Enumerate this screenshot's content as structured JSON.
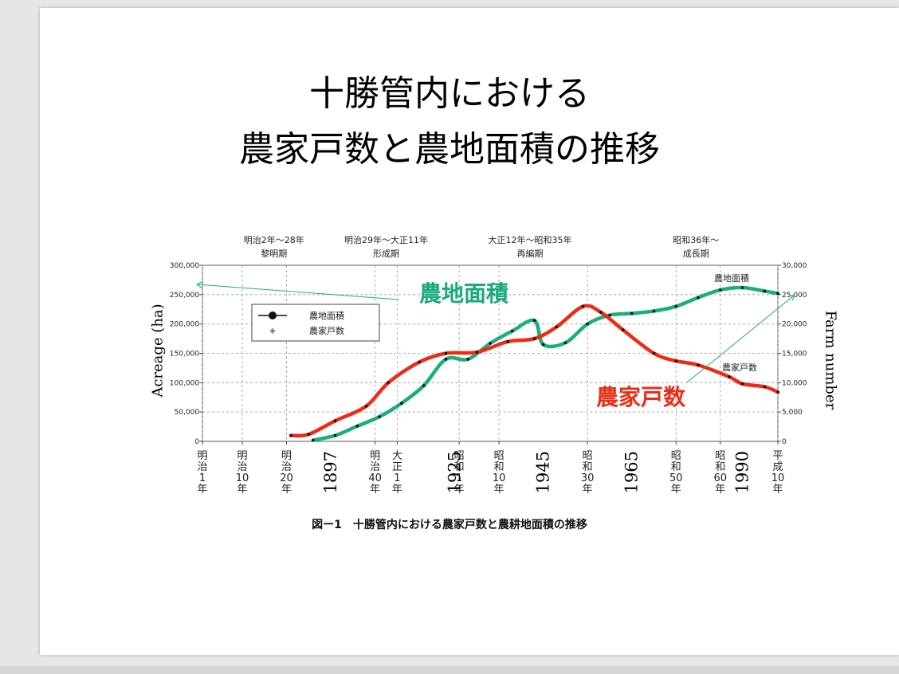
{
  "slide": {
    "title_line1": "十勝管内における",
    "title_line2": "農家戸数と農地面積の推移",
    "caption": "図ー1　十勝管内における農家戸数と農耕地面積の推移",
    "ylabel_left": "Acreage (ha)",
    "ylabel_right": "Farm number"
  },
  "chart_data": {
    "type": "line",
    "periods": [
      {
        "range": "明治2年～28年",
        "name": "黎明期"
      },
      {
        "range": "明治29年～大正11年",
        "name": "形成期"
      },
      {
        "range": "大正12年～昭和35年",
        "name": "再編期"
      },
      {
        "range": "昭和36年～",
        "name": "成長期"
      }
    ],
    "x_ticks": [
      {
        "label": "明治1年",
        "year": 1868
      },
      {
        "label": "明治10年",
        "year": 1877
      },
      {
        "label": "明治20年",
        "year": 1887
      },
      {
        "label": "明治40年",
        "year": 1907
      },
      {
        "label": "大正1年",
        "year": 1912
      },
      {
        "label": "昭和1年",
        "year": 1926
      },
      {
        "label": "昭和10年",
        "year": 1935
      },
      {
        "label": "昭和30年",
        "year": 1955
      },
      {
        "label": "昭和50年",
        "year": 1975
      },
      {
        "label": "昭和60年",
        "year": 1985
      },
      {
        "label": "平成10年",
        "year": 1998
      }
    ],
    "year_annotations": [
      {
        "label": "1897",
        "year": 1897
      },
      {
        "label": "1925",
        "year": 1925
      },
      {
        "label": "1945",
        "year": 1945
      },
      {
        "label": "1965",
        "year": 1965
      },
      {
        "label": "1990",
        "year": 1990
      }
    ],
    "xlim": [
      1868,
      1998
    ],
    "y_left": {
      "ticks": [
        "0",
        "50,000",
        "100,000",
        "150,000",
        "200,000",
        "250,000",
        "300,000"
      ],
      "ylim": [
        0,
        300000
      ]
    },
    "y_right": {
      "ticks": [
        "0",
        "5,000",
        "10,000",
        "15,000",
        "20,000",
        "25,000",
        "30,000"
      ],
      "ylim": [
        0,
        30000
      ]
    },
    "legend": {
      "placement": "top-left",
      "items": [
        "農地面積",
        "農家戸数"
      ]
    },
    "series": [
      {
        "name": "農地面積",
        "axis": "left",
        "color": "#1aae7e",
        "points": [
          {
            "x": 1893,
            "y": 2000
          },
          {
            "x": 1898,
            "y": 10000
          },
          {
            "x": 1903,
            "y": 26000
          },
          {
            "x": 1908,
            "y": 42000
          },
          {
            "x": 1913,
            "y": 65000
          },
          {
            "x": 1918,
            "y": 95000
          },
          {
            "x": 1923,
            "y": 140000
          },
          {
            "x": 1928,
            "y": 140000
          },
          {
            "x": 1933,
            "y": 167000
          },
          {
            "x": 1938,
            "y": 188000
          },
          {
            "x": 1943,
            "y": 206000
          },
          {
            "x": 1945,
            "y": 165000
          },
          {
            "x": 1950,
            "y": 168000
          },
          {
            "x": 1955,
            "y": 200000
          },
          {
            "x": 1960,
            "y": 215000
          },
          {
            "x": 1965,
            "y": 218000
          },
          {
            "x": 1970,
            "y": 222000
          },
          {
            "x": 1975,
            "y": 230000
          },
          {
            "x": 1980,
            "y": 245000
          },
          {
            "x": 1985,
            "y": 258000
          },
          {
            "x": 1990,
            "y": 262000
          },
          {
            "x": 1995,
            "y": 256000
          },
          {
            "x": 1998,
            "y": 252000
          }
        ]
      },
      {
        "name": "農家戸数",
        "axis": "right",
        "color": "#ee2b14",
        "points": [
          {
            "x": 1888,
            "y": 1000
          },
          {
            "x": 1892,
            "y": 1200
          },
          {
            "x": 1898,
            "y": 3500
          },
          {
            "x": 1905,
            "y": 6000
          },
          {
            "x": 1910,
            "y": 10000
          },
          {
            "x": 1917,
            "y": 13500
          },
          {
            "x": 1923,
            "y": 15000
          },
          {
            "x": 1930,
            "y": 15200
          },
          {
            "x": 1937,
            "y": 17000
          },
          {
            "x": 1943,
            "y": 17500
          },
          {
            "x": 1948,
            "y": 19500
          },
          {
            "x": 1954,
            "y": 23000
          },
          {
            "x": 1958,
            "y": 22000
          },
          {
            "x": 1963,
            "y": 19000
          },
          {
            "x": 1970,
            "y": 15000
          },
          {
            "x": 1975,
            "y": 13700
          },
          {
            "x": 1980,
            "y": 13000
          },
          {
            "x": 1987,
            "y": 11000
          },
          {
            "x": 1990,
            "y": 9800
          },
          {
            "x": 1995,
            "y": 9300
          },
          {
            "x": 1998,
            "y": 8400
          }
        ]
      }
    ],
    "annotations": {
      "right_end_area_label": "農地面積",
      "right_end_farm_label": "農家戸数",
      "overlay_area_label": "農地面積",
      "overlay_farm_label": "農家戸数",
      "overlay_area_color": "#19a97c",
      "overlay_farm_color": "#ee2b14"
    },
    "grid": true
  }
}
